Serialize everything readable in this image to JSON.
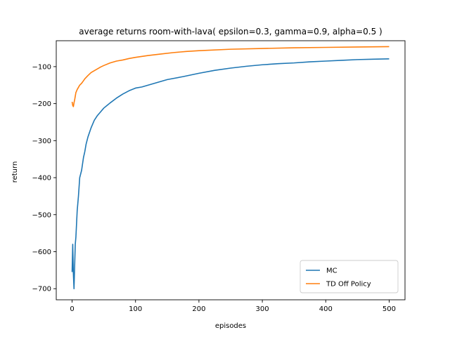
{
  "chart_data": {
    "type": "line",
    "title": "average returns room-with-lava( epsilon=0.3, gamma=0.9, alpha=0.5 )",
    "xlabel": "episodes",
    "ylabel": "return",
    "xlim": [
      -25,
      525
    ],
    "ylim": [
      -730,
      -30
    ],
    "xticks": [
      0,
      100,
      200,
      300,
      400,
      500
    ],
    "yticks": [
      -700,
      -600,
      -500,
      -400,
      -300,
      -200,
      -100
    ],
    "grid": false,
    "legend_position": "lower-right",
    "series": [
      {
        "name": "MC",
        "color": "#1f77b4",
        "x": [
          0,
          1,
          2,
          3,
          4,
          5,
          6,
          8,
          10,
          12,
          15,
          18,
          20,
          22,
          25,
          28,
          30,
          35,
          40,
          45,
          50,
          55,
          60,
          70,
          80,
          90,
          100,
          110,
          120,
          130,
          140,
          150,
          175,
          200,
          225,
          250,
          275,
          300,
          325,
          350,
          375,
          400,
          425,
          450,
          475,
          500
        ],
        "values": [
          -655,
          -580,
          -660,
          -700,
          -640,
          -580,
          -560,
          -490,
          -450,
          -400,
          -380,
          -345,
          -330,
          -310,
          -290,
          -275,
          -265,
          -245,
          -232,
          -222,
          -212,
          -205,
          -198,
          -185,
          -174,
          -165,
          -158,
          -155,
          -150,
          -145,
          -140,
          -135,
          -127,
          -118,
          -110,
          -104,
          -99,
          -95,
          -92,
          -90,
          -87,
          -85,
          -83,
          -81,
          -80,
          -79
        ]
      },
      {
        "name": "TD Off Policy",
        "color": "#ff7f0e",
        "x": [
          0,
          1,
          2,
          3,
          4,
          5,
          6,
          8,
          10,
          12,
          15,
          18,
          20,
          25,
          30,
          35,
          40,
          45,
          50,
          60,
          70,
          80,
          90,
          100,
          120,
          140,
          160,
          180,
          200,
          250,
          300,
          350,
          400,
          450,
          500
        ],
        "values": [
          -195,
          -205,
          -208,
          -198,
          -190,
          -180,
          -170,
          -162,
          -156,
          -150,
          -145,
          -138,
          -133,
          -124,
          -116,
          -111,
          -106,
          -101,
          -97,
          -90,
          -85,
          -82,
          -78,
          -75,
          -70,
          -66,
          -62,
          -59,
          -57,
          -53,
          -51,
          -49,
          -48,
          -47,
          -46
        ]
      }
    ]
  }
}
